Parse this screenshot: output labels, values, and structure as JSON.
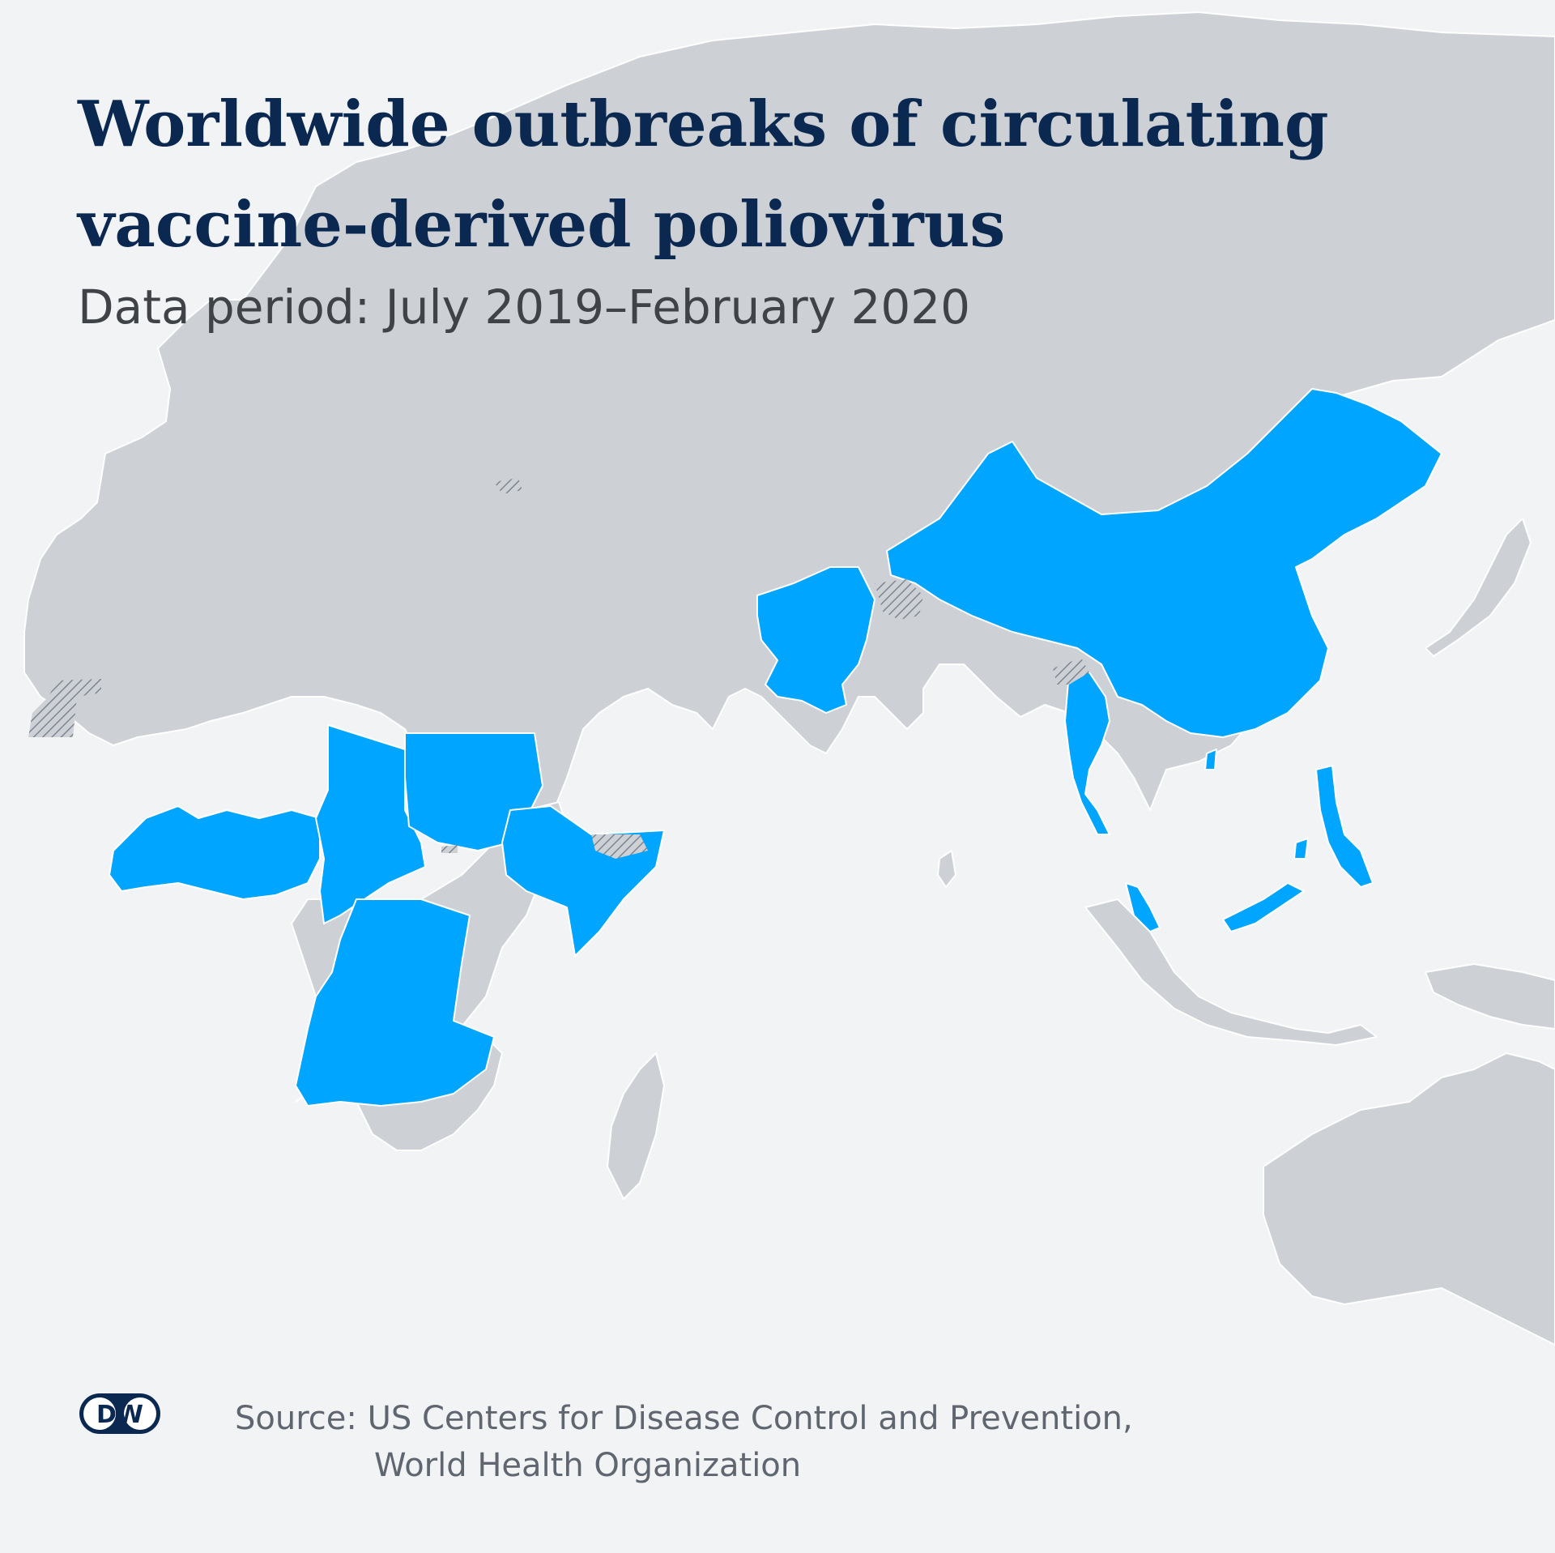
{
  "title_lines": [
    "Worldwide outbreaks of circulating",
    "vaccine-derived poliovirus"
  ],
  "subtitle": "Data period: July 2019–February 2020",
  "source_lines": [
    "Source: US Centers for Disease Control and Prevention,",
    "World Health Organization"
  ],
  "logo_text": "DW",
  "colors": {
    "background": "#f1f3f5",
    "land": "#cdd1d6",
    "affected": "#00a5ff",
    "disputed_hatch": "#7d8690",
    "title": "#0a2850",
    "logo": "#0a2850"
  }
}
